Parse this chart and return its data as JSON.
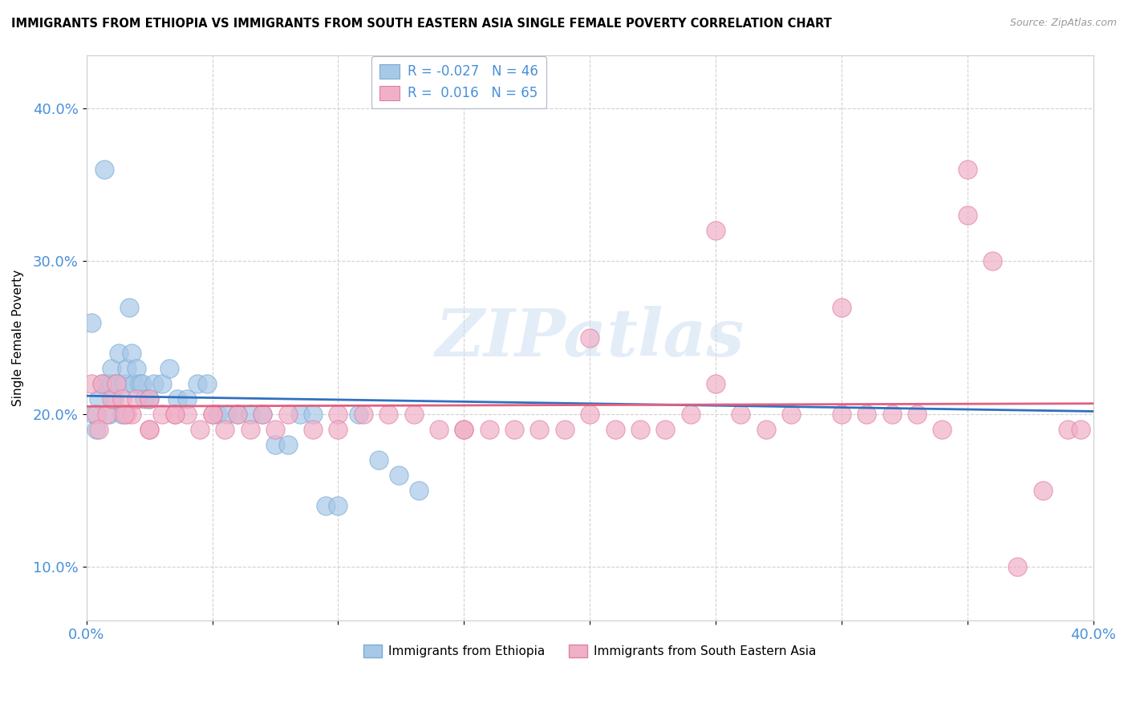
{
  "title": "IMMIGRANTS FROM ETHIOPIA VS IMMIGRANTS FROM SOUTH EASTERN ASIA SINGLE FEMALE POVERTY CORRELATION CHART",
  "source_text": "Source: ZipAtlas.com",
  "ylabel": "Single Female Poverty",
  "xlim": [
    0.0,
    0.4
  ],
  "ylim": [
    0.065,
    0.435
  ],
  "xticks": [
    0.0,
    0.05,
    0.1,
    0.15,
    0.2,
    0.25,
    0.3,
    0.35,
    0.4
  ],
  "xtick_labels_show": [
    true,
    false,
    false,
    false,
    false,
    false,
    false,
    false,
    true
  ],
  "yticks": [
    0.1,
    0.2,
    0.3,
    0.4
  ],
  "ethiopia_color": "#a8c8e8",
  "ethiopia_edge": "#7aacd4",
  "sea_color": "#f0b0c8",
  "sea_edge": "#e080a0",
  "line_ethiopia": "#3070c0",
  "line_sea": "#e06080",
  "R_ethiopia": -0.027,
  "N_ethiopia": 46,
  "R_sea": 0.016,
  "N_sea": 65,
  "watermark": "ZIPatlas",
  "ethiopia_x": [
    0.002,
    0.003,
    0.004,
    0.005,
    0.006,
    0.007,
    0.008,
    0.009,
    0.01,
    0.01,
    0.011,
    0.012,
    0.013,
    0.014,
    0.015,
    0.016,
    0.017,
    0.018,
    0.019,
    0.02,
    0.021,
    0.022,
    0.023,
    0.025,
    0.027,
    0.03,
    0.033,
    0.036,
    0.04,
    0.044,
    0.048,
    0.052,
    0.056,
    0.06,
    0.065,
    0.07,
    0.075,
    0.08,
    0.085,
    0.09,
    0.095,
    0.1,
    0.108,
    0.116,
    0.124,
    0.132
  ],
  "ethiopia_y": [
    0.26,
    0.2,
    0.19,
    0.21,
    0.22,
    0.36,
    0.22,
    0.2,
    0.22,
    0.23,
    0.21,
    0.22,
    0.24,
    0.2,
    0.22,
    0.23,
    0.27,
    0.24,
    0.22,
    0.23,
    0.22,
    0.22,
    0.21,
    0.21,
    0.22,
    0.22,
    0.23,
    0.21,
    0.21,
    0.22,
    0.22,
    0.2,
    0.2,
    0.2,
    0.2,
    0.2,
    0.18,
    0.18,
    0.2,
    0.2,
    0.14,
    0.14,
    0.2,
    0.17,
    0.16,
    0.15
  ],
  "sea_x": [
    0.002,
    0.004,
    0.006,
    0.008,
    0.01,
    0.012,
    0.014,
    0.016,
    0.018,
    0.02,
    0.025,
    0.03,
    0.035,
    0.04,
    0.05,
    0.06,
    0.07,
    0.08,
    0.09,
    0.1,
    0.11,
    0.12,
    0.13,
    0.14,
    0.15,
    0.16,
    0.17,
    0.18,
    0.19,
    0.2,
    0.21,
    0.22,
    0.23,
    0.24,
    0.25,
    0.26,
    0.27,
    0.28,
    0.3,
    0.31,
    0.32,
    0.33,
    0.34,
    0.35,
    0.36,
    0.37,
    0.38,
    0.39,
    0.005,
    0.015,
    0.025,
    0.035,
    0.045,
    0.055,
    0.065,
    0.075,
    0.25,
    0.3,
    0.35,
    0.395,
    0.2,
    0.15,
    0.1,
    0.05,
    0.025
  ],
  "sea_y": [
    0.22,
    0.2,
    0.22,
    0.2,
    0.21,
    0.22,
    0.21,
    0.2,
    0.2,
    0.21,
    0.21,
    0.2,
    0.2,
    0.2,
    0.2,
    0.2,
    0.2,
    0.2,
    0.19,
    0.2,
    0.2,
    0.2,
    0.2,
    0.19,
    0.19,
    0.19,
    0.19,
    0.19,
    0.19,
    0.25,
    0.19,
    0.19,
    0.19,
    0.2,
    0.22,
    0.2,
    0.19,
    0.2,
    0.2,
    0.2,
    0.2,
    0.2,
    0.19,
    0.33,
    0.3,
    0.1,
    0.15,
    0.19,
    0.19,
    0.2,
    0.19,
    0.2,
    0.19,
    0.19,
    0.19,
    0.19,
    0.32,
    0.27,
    0.36,
    0.19,
    0.2,
    0.19,
    0.19,
    0.2,
    0.19
  ]
}
